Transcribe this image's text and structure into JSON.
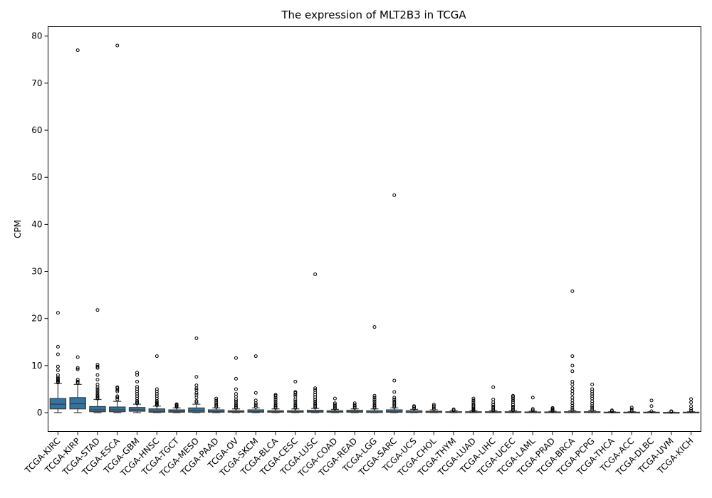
{
  "chart_data": {
    "type": "box",
    "title": "The expression of MLT2B3 in TCGA",
    "xlabel": "",
    "ylabel": "CPM",
    "ylim": [
      -4,
      82
    ],
    "yticks": [
      0,
      10,
      20,
      30,
      40,
      50,
      60,
      70,
      80
    ],
    "grid": false,
    "colors": {
      "box_fill": "#3274a1",
      "box_edge": "#3a3a3a",
      "median": "#3a3a3a",
      "outlier_edge": "#000000"
    },
    "categories": [
      "TCGA-KIRC",
      "TCGA-KIRP",
      "TCGA-STAD",
      "TCGA-ESCA",
      "TCGA-GBM",
      "TCGA-HNSC",
      "TCGA-TGCT",
      "TCGA-MESO",
      "TCGA-PAAD",
      "TCGA-OV",
      "TCGA-SKCM",
      "TCGA-BLCA",
      "TCGA-CESC",
      "TCGA-LUSC",
      "TCGA-COAD",
      "TCGA-READ",
      "TCGA-LGG",
      "TCGA-SARC",
      "TCGA-UCS",
      "TCGA-CHOL",
      "TCGA-THYM",
      "TCGA-LUAD",
      "TCGA-LIHC",
      "TCGA-UCEC",
      "TCGA-LAML",
      "TCGA-PRAD",
      "TCGA-BRCA",
      "TCGA-PCPG",
      "TCGA-THCA",
      "TCGA-ACC",
      "TCGA-DLBC",
      "TCGA-UVM",
      "TCGA-KICH"
    ],
    "boxes": [
      {
        "min": 0,
        "q1": 0.8,
        "median": 1.8,
        "q3": 3.0,
        "max": 6.2,
        "outliers": [
          6.4,
          6.6,
          6.8,
          7.0,
          7.2,
          7.5,
          8.0,
          9.0,
          9.8,
          12.4,
          14.0,
          21.2
        ]
      },
      {
        "min": 0,
        "q1": 0.8,
        "median": 1.9,
        "q3": 3.2,
        "max": 6.0,
        "outliers": [
          6.3,
          6.6,
          7.0,
          9.2,
          9.5,
          11.8,
          77.0
        ]
      },
      {
        "min": 0,
        "q1": 0.2,
        "median": 0.6,
        "q3": 1.3,
        "max": 2.8,
        "outliers": [
          3.0,
          3.2,
          3.5,
          3.8,
          4.2,
          4.6,
          5.0,
          5.4,
          6.0,
          7.0,
          8.0,
          9.5,
          9.8,
          10.2,
          21.8
        ]
      },
      {
        "min": 0,
        "q1": 0.2,
        "median": 0.6,
        "q3": 1.2,
        "max": 2.4,
        "outliers": [
          2.8,
          3.2,
          3.5,
          4.5,
          4.8,
          5.2,
          5.4,
          78.0
        ]
      },
      {
        "min": 0,
        "q1": 0.3,
        "median": 0.6,
        "q3": 1.1,
        "max": 1.8,
        "outliers": [
          2.0,
          2.2,
          2.5,
          3.0,
          3.5,
          4.0,
          4.5,
          5.0,
          5.5,
          6.6,
          8.0,
          8.5
        ]
      },
      {
        "min": 0,
        "q1": 0.1,
        "median": 0.3,
        "q3": 0.8,
        "max": 1.4,
        "outliers": [
          1.6,
          1.8,
          2.0,
          2.2,
          2.5,
          3.0,
          3.5,
          4.0,
          4.5,
          5.0,
          12.0
        ]
      },
      {
        "min": 0,
        "q1": 0.1,
        "median": 0.3,
        "q3": 0.6,
        "max": 1.0,
        "outliers": [
          1.2,
          1.4,
          1.6,
          1.8
        ]
      },
      {
        "min": 0,
        "q1": 0.1,
        "median": 0.4,
        "q3": 1.0,
        "max": 1.8,
        "outliers": [
          2.2,
          2.5,
          3.2,
          3.8,
          4.2,
          4.8,
          5.2,
          5.8,
          7.6,
          15.8
        ]
      },
      {
        "min": 0,
        "q1": 0.1,
        "median": 0.2,
        "q3": 0.6,
        "max": 1.0,
        "outliers": [
          1.2,
          1.5,
          1.8,
          2.2,
          2.6,
          3.0
        ]
      },
      {
        "min": 0,
        "q1": 0.1,
        "median": 0.2,
        "q3": 0.4,
        "max": 0.8,
        "outliers": [
          1.0,
          1.3,
          1.6,
          2.0,
          2.4,
          2.8,
          3.4,
          4.0,
          5.0,
          7.2,
          11.6
        ]
      },
      {
        "min": 0,
        "q1": 0.1,
        "median": 0.2,
        "q3": 0.6,
        "max": 1.0,
        "outliers": [
          1.2,
          1.6,
          2.0,
          2.6,
          4.2,
          12.0
        ]
      },
      {
        "min": 0,
        "q1": 0.1,
        "median": 0.2,
        "q3": 0.4,
        "max": 0.8,
        "outliers": [
          1.0,
          1.3,
          1.6,
          2.0,
          2.4,
          2.8,
          3.2,
          3.6,
          3.8
        ]
      },
      {
        "min": 0,
        "q1": 0.1,
        "median": 0.2,
        "q3": 0.4,
        "max": 0.8,
        "outliers": [
          1.0,
          1.3,
          1.6,
          2.0,
          2.4,
          2.8,
          3.4,
          3.8,
          4.2,
          4.4,
          6.6
        ]
      },
      {
        "min": 0,
        "q1": 0.1,
        "median": 0.2,
        "q3": 0.5,
        "max": 0.9,
        "outliers": [
          1.1,
          1.4,
          1.7,
          2.0,
          2.4,
          2.8,
          3.3,
          3.8,
          4.3,
          4.8,
          5.2,
          29.4
        ]
      },
      {
        "min": 0,
        "q1": 0.1,
        "median": 0.2,
        "q3": 0.4,
        "max": 0.7,
        "outliers": [
          0.9,
          1.1,
          1.4,
          1.7,
          2.0,
          3.0
        ]
      },
      {
        "min": 0,
        "q1": 0.1,
        "median": 0.2,
        "q3": 0.5,
        "max": 0.8,
        "outliers": [
          1.0,
          1.3,
          1.6,
          2.0
        ]
      },
      {
        "min": 0,
        "q1": 0.05,
        "median": 0.15,
        "q3": 0.4,
        "max": 0.8,
        "outliers": [
          1.0,
          1.3,
          1.6,
          2.0,
          2.4,
          2.8,
          3.2,
          3.6,
          18.2
        ]
      },
      {
        "min": 0,
        "q1": 0.1,
        "median": 0.2,
        "q3": 0.6,
        "max": 1.0,
        "outliers": [
          1.2,
          1.5,
          1.8,
          2.1,
          2.4,
          2.8,
          3.2,
          4.4,
          6.8,
          46.2
        ]
      },
      {
        "min": 0,
        "q1": 0.05,
        "median": 0.15,
        "q3": 0.4,
        "max": 0.7,
        "outliers": [
          0.9,
          1.2,
          1.4
        ]
      },
      {
        "min": 0,
        "q1": 0.05,
        "median": 0.15,
        "q3": 0.3,
        "max": 0.6,
        "outliers": [
          0.8,
          1.1,
          1.4,
          1.7
        ]
      },
      {
        "min": 0,
        "q1": 0.05,
        "median": 0.1,
        "q3": 0.2,
        "max": 0.4,
        "outliers": [
          0.5,
          0.7
        ]
      },
      {
        "min": 0,
        "q1": 0.03,
        "median": 0.1,
        "q3": 0.2,
        "max": 0.4,
        "outliers": [
          0.5,
          0.7,
          0.9,
          1.2,
          1.5,
          1.8,
          2.2,
          2.6,
          3.0
        ]
      },
      {
        "min": 0,
        "q1": 0.03,
        "median": 0.08,
        "q3": 0.2,
        "max": 0.4,
        "outliers": [
          0.5,
          0.7,
          1.0,
          1.3,
          1.7,
          2.2,
          2.8,
          5.4
        ]
      },
      {
        "min": 0,
        "q1": 0.03,
        "median": 0.08,
        "q3": 0.2,
        "max": 0.4,
        "outliers": [
          0.5,
          0.7,
          1.0,
          1.3,
          1.7,
          2.2,
          2.6,
          3.0,
          3.4,
          3.6
        ]
      },
      {
        "min": 0,
        "q1": 0.03,
        "median": 0.08,
        "q3": 0.15,
        "max": 0.3,
        "outliers": [
          0.5,
          0.8,
          3.2
        ]
      },
      {
        "min": 0,
        "q1": 0.03,
        "median": 0.08,
        "q3": 0.15,
        "max": 0.3,
        "outliers": [
          0.4,
          0.6,
          0.8,
          1.0
        ]
      },
      {
        "min": 0,
        "q1": 0.03,
        "median": 0.08,
        "q3": 0.2,
        "max": 0.4,
        "outliers": [
          0.6,
          1.0,
          1.5,
          2.0,
          2.6,
          3.2,
          4.0,
          4.6,
          5.2,
          6.0,
          6.6,
          8.8,
          10.0,
          12.0,
          25.8
        ]
      },
      {
        "min": 0,
        "q1": 0.03,
        "median": 0.08,
        "q3": 0.2,
        "max": 0.4,
        "outliers": [
          0.6,
          1.0,
          1.4,
          1.9,
          2.4,
          3.0,
          3.5,
          4.0,
          4.5,
          5.0,
          6.0
        ]
      },
      {
        "min": 0,
        "q1": 0.02,
        "median": 0.05,
        "q3": 0.1,
        "max": 0.2,
        "outliers": [
          0.3,
          0.5
        ]
      },
      {
        "min": 0,
        "q1": 0.02,
        "median": 0.05,
        "q3": 0.1,
        "max": 0.2,
        "outliers": [
          0.4,
          0.7,
          1.1
        ]
      },
      {
        "min": 0,
        "q1": 0.02,
        "median": 0.05,
        "q3": 0.1,
        "max": 0.2,
        "outliers": [
          0.3,
          1.4,
          2.6
        ]
      },
      {
        "min": 0,
        "q1": 0.0,
        "median": 0.02,
        "q3": 0.05,
        "max": 0.1,
        "outliers": [
          0.2,
          0.3
        ]
      },
      {
        "min": 0,
        "q1": 0.02,
        "median": 0.05,
        "q3": 0.1,
        "max": 0.2,
        "outliers": [
          0.4,
          0.8,
          1.4,
          2.2,
          2.9
        ]
      }
    ]
  }
}
